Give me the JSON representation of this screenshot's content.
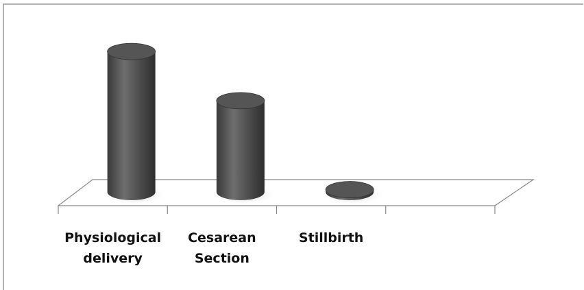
{
  "chart_data": {
    "type": "bar3d",
    "categories": [
      "Physiological delivery",
      "Cesarean Section",
      "Stillbirth"
    ],
    "values": [
      60,
      39,
      1
    ],
    "color": "#555555",
    "ylim": [
      0,
      70
    ]
  }
}
